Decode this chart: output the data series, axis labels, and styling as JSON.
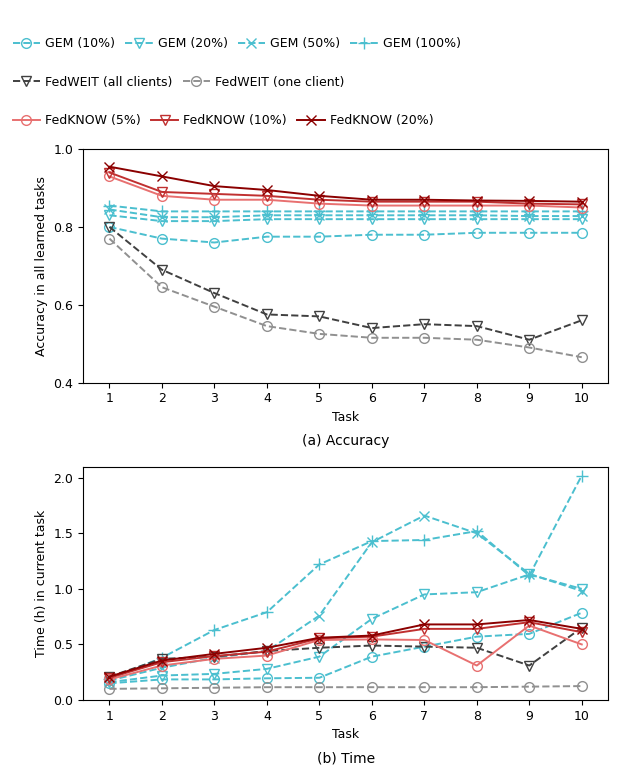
{
  "tasks": [
    1,
    2,
    3,
    4,
    5,
    6,
    7,
    8,
    9,
    10
  ],
  "accuracy": {
    "GEM_10": [
      0.8,
      0.77,
      0.76,
      0.775,
      0.775,
      0.78,
      0.78,
      0.785,
      0.785,
      0.785
    ],
    "GEM_20": [
      0.83,
      0.815,
      0.815,
      0.82,
      0.82,
      0.82,
      0.82,
      0.82,
      0.82,
      0.82
    ],
    "GEM_50": [
      0.845,
      0.825,
      0.825,
      0.83,
      0.83,
      0.83,
      0.83,
      0.83,
      0.828,
      0.828
    ],
    "GEM_100": [
      0.855,
      0.84,
      0.84,
      0.84,
      0.84,
      0.84,
      0.84,
      0.84,
      0.84,
      0.84
    ],
    "FedWEIT_all": [
      0.8,
      0.69,
      0.63,
      0.575,
      0.57,
      0.54,
      0.55,
      0.545,
      0.51,
      0.56
    ],
    "FedWEIT_one": [
      0.77,
      0.645,
      0.595,
      0.545,
      0.525,
      0.515,
      0.515,
      0.51,
      0.49,
      0.465
    ],
    "FedKNOW_5": [
      0.93,
      0.88,
      0.87,
      0.87,
      0.86,
      0.855,
      0.855,
      0.855,
      0.855,
      0.85
    ],
    "FedKNOW_10": [
      0.94,
      0.89,
      0.885,
      0.88,
      0.87,
      0.865,
      0.865,
      0.865,
      0.86,
      0.858
    ],
    "FedKNOW_20": [
      0.955,
      0.93,
      0.905,
      0.895,
      0.88,
      0.87,
      0.87,
      0.868,
      0.867,
      0.865
    ]
  },
  "time": {
    "GEM_10": [
      0.15,
      0.185,
      0.185,
      0.195,
      0.2,
      0.39,
      0.48,
      0.57,
      0.595,
      0.785
    ],
    "GEM_20": [
      0.16,
      0.22,
      0.235,
      0.28,
      0.39,
      0.73,
      0.95,
      0.97,
      1.13,
      1.0
    ],
    "GEM_50": [
      0.175,
      0.29,
      0.38,
      0.44,
      0.76,
      1.42,
      1.66,
      1.5,
      1.135,
      0.98
    ],
    "GEM_100": [
      0.19,
      0.38,
      0.63,
      0.79,
      1.22,
      1.43,
      1.44,
      1.52,
      1.12,
      2.02
    ],
    "FedWEIT_all": [
      0.21,
      0.37,
      0.39,
      0.44,
      0.47,
      0.49,
      0.48,
      0.47,
      0.31,
      0.65
    ],
    "FedWEIT_one": [
      0.1,
      0.105,
      0.11,
      0.115,
      0.115,
      0.115,
      0.115,
      0.115,
      0.12,
      0.125
    ],
    "FedKNOW_5": [
      0.185,
      0.31,
      0.37,
      0.4,
      0.54,
      0.545,
      0.54,
      0.31,
      0.67,
      0.5
    ],
    "FedKNOW_10": [
      0.2,
      0.34,
      0.395,
      0.435,
      0.555,
      0.57,
      0.64,
      0.64,
      0.7,
      0.61
    ],
    "FedKNOW_20": [
      0.21,
      0.355,
      0.415,
      0.47,
      0.56,
      0.58,
      0.68,
      0.68,
      0.72,
      0.64
    ]
  },
  "colors": {
    "GEM": "#4BBFCF",
    "FedWEIT_all": "#404040",
    "FedWEIT_one": "#909090",
    "FedKNOW_5": "#E87070",
    "FedKNOW_10": "#C03030",
    "FedKNOW_20": "#8B0000"
  },
  "legend_row1": [
    "GEM (10%)",
    "GEM (20%)",
    "GEM (50%)",
    "GEM (100%)"
  ],
  "legend_row2": [
    "FedWEIT (all clients)",
    "FedWEIT (one client)"
  ],
  "legend_row3": [
    "FedKNOW (5%)",
    "FedKNOW (10%)",
    "FedKNOW (20%)"
  ]
}
